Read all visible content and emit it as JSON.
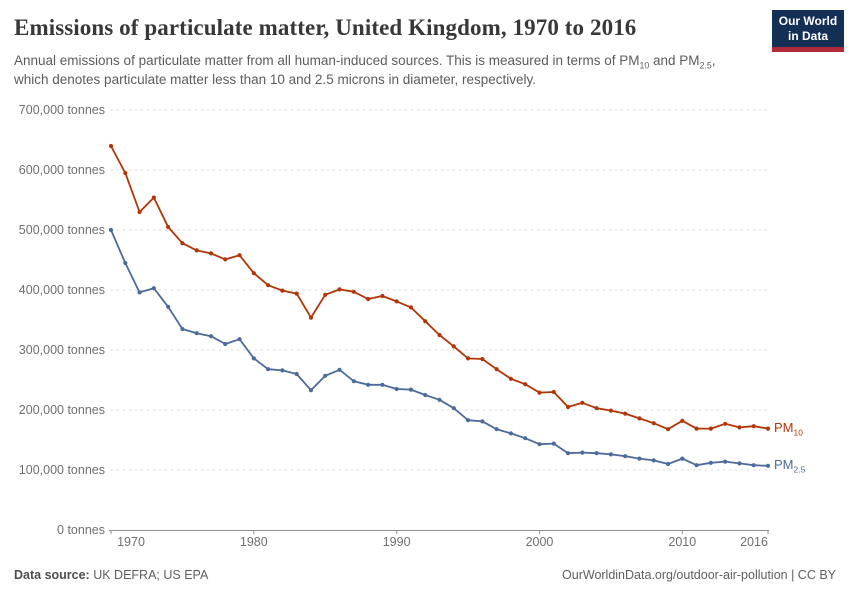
{
  "header": {
    "title": "Emissions of particulate matter, United Kingdom, 1970 to 2016",
    "subtitle": {
      "part1": "Annual emissions of particulate matter from all human-induced sources. This is measured in terms of PM",
      "sub1": "10",
      "part2": " and PM",
      "sub2": "2.5",
      "part3": ", which denotes particulate matter less than 10 and 2.5 microns in diameter, respectively."
    },
    "logo": {
      "line1": "Our World",
      "line2": "in Data",
      "bg_color": "#142f56",
      "stripe_color": "#b02a3a"
    }
  },
  "chart_data": {
    "type": "line",
    "title": "Emissions of particulate matter, United Kingdom, 1970 to 2016",
    "xlabel": "",
    "ylabel": "tonnes",
    "ylim": [
      0,
      700000
    ],
    "grid": "horizontal-dashed",
    "legend_position": "right-of-line-ends",
    "years": [
      1970,
      1971,
      1972,
      1973,
      1974,
      1975,
      1976,
      1977,
      1978,
      1979,
      1980,
      1981,
      1982,
      1983,
      1984,
      1985,
      1986,
      1987,
      1988,
      1989,
      1990,
      1991,
      1992,
      1993,
      1994,
      1995,
      1996,
      1997,
      1998,
      1999,
      2000,
      2001,
      2002,
      2003,
      2004,
      2005,
      2006,
      2007,
      2008,
      2009,
      2010,
      2011,
      2012,
      2013,
      2014,
      2015,
      2016
    ],
    "series": [
      {
        "name": "PM10",
        "label": {
          "text": "PM",
          "sub": "10"
        },
        "color": "#b13507",
        "values": [
          640000,
          595000,
          530000,
          554000,
          505000,
          478000,
          466000,
          461000,
          451000,
          458000,
          428000,
          408000,
          399000,
          394000,
          354000,
          392000,
          401000,
          397000,
          385000,
          390000,
          381000,
          371000,
          348000,
          325000,
          306000,
          286000,
          285000,
          268000,
          252000,
          243000,
          229000,
          230000,
          205000,
          212000,
          203000,
          199000,
          194000,
          186000,
          178000,
          168000,
          182000,
          169000,
          169000,
          177000,
          171000,
          173000,
          169000
        ]
      },
      {
        "name": "PM2.5",
        "label": {
          "text": "PM",
          "sub": "2.5"
        },
        "color": "#4c6a9c",
        "values": [
          500000,
          445000,
          396000,
          403000,
          372000,
          335000,
          328000,
          323000,
          310000,
          318000,
          286000,
          268000,
          266000,
          260000,
          233000,
          257000,
          267000,
          248000,
          242000,
          242000,
          235000,
          234000,
          225000,
          217000,
          203000,
          183000,
          181000,
          168000,
          161000,
          153000,
          143000,
          144000,
          128000,
          129000,
          128000,
          126000,
          123000,
          119000,
          116000,
          110000,
          119000,
          108000,
          112000,
          114000,
          111000,
          108000,
          107000
        ]
      }
    ],
    "y_ticks": [
      {
        "value": 700000,
        "label": "700,000 tonnes"
      },
      {
        "value": 600000,
        "label": "600,000 tonnes"
      },
      {
        "value": 500000,
        "label": "500,000 tonnes"
      },
      {
        "value": 400000,
        "label": "400,000 tonnes"
      },
      {
        "value": 300000,
        "label": "300,000 tonnes"
      },
      {
        "value": 200000,
        "label": "200,000 tonnes"
      },
      {
        "value": 100000,
        "label": "100,000 tonnes"
      },
      {
        "value": 0,
        "label": "0 tonnes"
      }
    ],
    "x_ticks": [
      {
        "year": 1970,
        "label": "1970"
      },
      {
        "year": 1980,
        "label": "1980"
      },
      {
        "year": 1990,
        "label": "1990"
      },
      {
        "year": 2000,
        "label": "2000"
      },
      {
        "year": 2010,
        "label": "2010"
      },
      {
        "year": 2016,
        "label": "2016"
      }
    ],
    "colors": {
      "gridline": "#d6d6d6",
      "axis": "#8f8f8f",
      "tick_text": "#6f6f6f"
    }
  },
  "footer": {
    "source_label": "Data source:",
    "source_value": " UK DEFRA; US EPA",
    "credit": "OurWorldinData.org/outdoor-air-pollution | CC BY"
  }
}
